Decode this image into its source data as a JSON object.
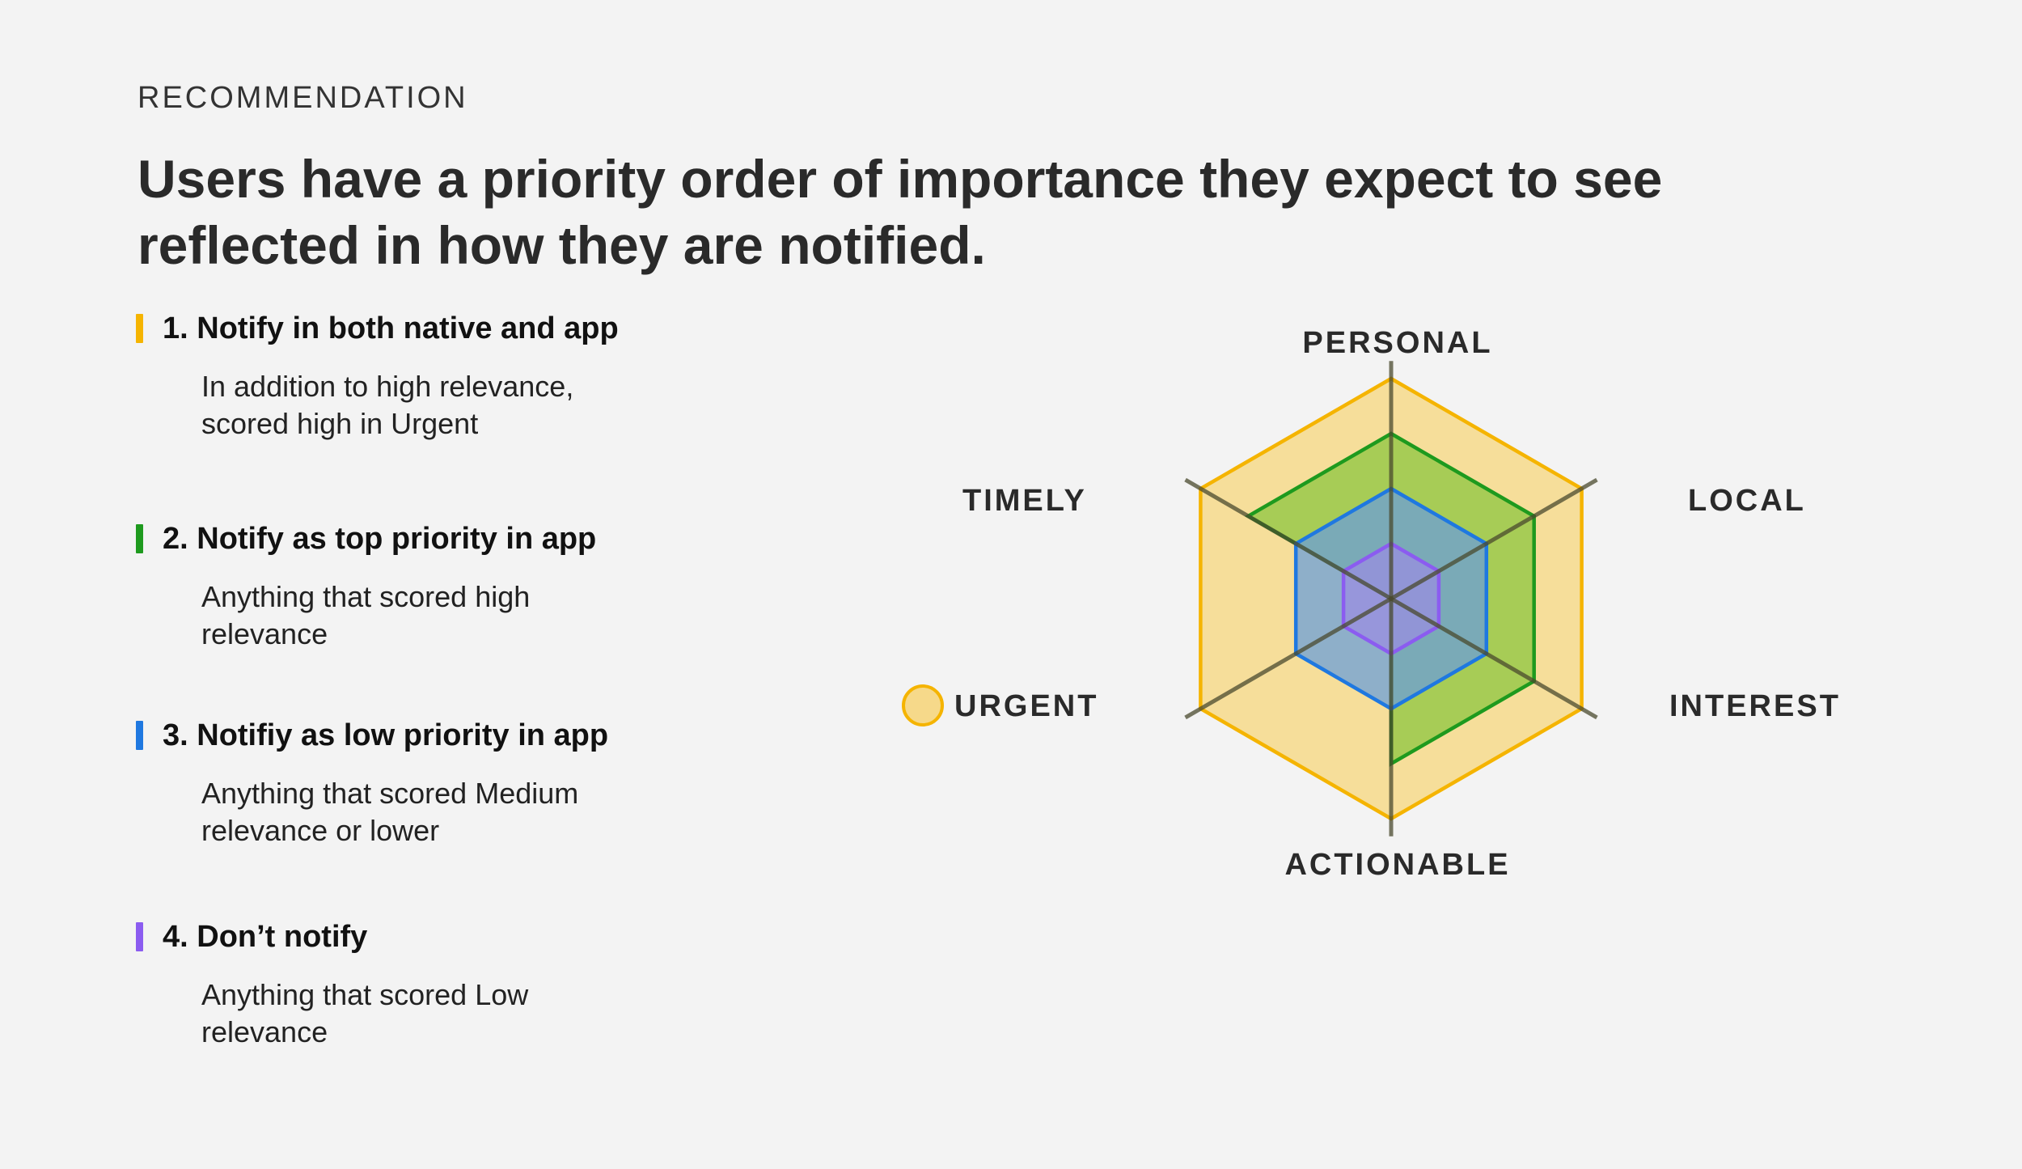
{
  "eyebrow": "RECOMMENDATION",
  "headline": "Users have a priority order of importance they expect to see reflected in how they are notified.",
  "priorities": [
    {
      "title": "1. Notify in both native and app",
      "description": "In addition to high relevance, scored high in Urgent",
      "color": "#f5b400"
    },
    {
      "title": "2.  Notify as top priority in app",
      "description": "Anything that scored high relevance",
      "color": "#1e9a1e"
    },
    {
      "title": "3. Notifiy as low priority in app",
      "description": "Anything that scored Medium relevance or lower",
      "color": "#1f78e0"
    },
    {
      "title": "4. Don’t notify",
      "description": "Anything that scored Low relevance",
      "color": "#8b5cf0"
    }
  ],
  "radar": {
    "axes": [
      "PERSONAL",
      "LOCAL",
      "INTEREST",
      "ACTIONABLE",
      "URGENT",
      "TIMELY"
    ],
    "highlighted_axis": "URGENT",
    "highlight_color": "#f5b400",
    "scale_max": 4,
    "series": [
      {
        "color": "#f5b400",
        "fill": "#f6d98a",
        "values": [
          4,
          4,
          4,
          4,
          4,
          4
        ]
      },
      {
        "color": "#1e9a1e",
        "fill": "#8cc63f",
        "values": [
          3,
          3,
          3,
          3,
          0,
          3
        ]
      },
      {
        "color": "#1f78e0",
        "fill": "#6b9fd8",
        "values": [
          2,
          2,
          2,
          2,
          2,
          2
        ]
      },
      {
        "color": "#8b5cf0",
        "fill": "#9a8ee0",
        "values": [
          1,
          1,
          1,
          1,
          1,
          1
        ]
      }
    ]
  }
}
